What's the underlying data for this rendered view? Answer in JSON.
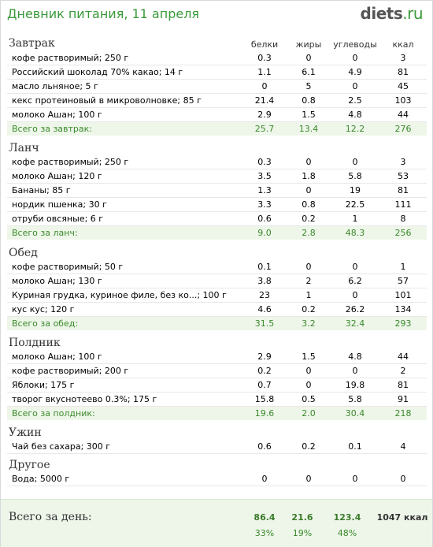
{
  "header": {
    "title": "Дневник питания, 11 апреля",
    "logo_main": "diets",
    "logo_suffix": ".ru"
  },
  "columns": {
    "protein": "белки",
    "fat": "жиры",
    "carbs": "углеводы",
    "kcal": "ккал"
  },
  "meals": {
    "breakfast": {
      "title": "Завтрак",
      "items": [
        {
          "name": "кофе растворимый; 250 г",
          "p": "0.3",
          "f": "0",
          "c": "0",
          "k": "3"
        },
        {
          "name": "Российский шоколад 70% какао; 14 г",
          "p": "1.1",
          "f": "6.1",
          "c": "4.9",
          "k": "81"
        },
        {
          "name": "масло льняное; 5 г",
          "p": "0",
          "f": "5",
          "c": "0",
          "k": "45"
        },
        {
          "name": "кекс протеиновый в микроволновке; 85 г",
          "p": "21.4",
          "f": "0.8",
          "c": "2.5",
          "k": "103"
        },
        {
          "name": "молоко Ашан; 100 г",
          "p": "2.9",
          "f": "1.5",
          "c": "4.8",
          "k": "44"
        }
      ],
      "total": {
        "name": "Всего за завтрак:",
        "p": "25.7",
        "f": "13.4",
        "c": "12.2",
        "k": "276"
      }
    },
    "lunch": {
      "title": "Ланч",
      "items": [
        {
          "name": "кофе растворимый; 250 г",
          "p": "0.3",
          "f": "0",
          "c": "0",
          "k": "3"
        },
        {
          "name": "молоко Ашан; 120 г",
          "p": "3.5",
          "f": "1.8",
          "c": "5.8",
          "k": "53"
        },
        {
          "name": "Бананы; 85 г",
          "p": "1.3",
          "f": "0",
          "c": "19",
          "k": "81"
        },
        {
          "name": "нордик пшенка; 30 г",
          "p": "3.3",
          "f": "0.8",
          "c": "22.5",
          "k": "111"
        },
        {
          "name": "отруби овсяные; 6 г",
          "p": "0.6",
          "f": "0.2",
          "c": "1",
          "k": "8"
        }
      ],
      "total": {
        "name": "Всего за ланч:",
        "p": "9.0",
        "f": "2.8",
        "c": "48.3",
        "k": "256"
      }
    },
    "dinner": {
      "title": "Обед",
      "items": [
        {
          "name": "кофе растворимый; 50 г",
          "p": "0.1",
          "f": "0",
          "c": "0",
          "k": "1"
        },
        {
          "name": "молоко Ашан; 130 г",
          "p": "3.8",
          "f": "2",
          "c": "6.2",
          "k": "57"
        },
        {
          "name": "Куриная грудка, куриное филе, без ко...; 100 г",
          "p": "23",
          "f": "1",
          "c": "0",
          "k": "101"
        },
        {
          "name": "кус кус; 120 г",
          "p": "4.6",
          "f": "0.2",
          "c": "26.2",
          "k": "134"
        }
      ],
      "total": {
        "name": "Всего за обед:",
        "p": "31.5",
        "f": "3.2",
        "c": "32.4",
        "k": "293"
      }
    },
    "snack": {
      "title": "Полдник",
      "items": [
        {
          "name": "молоко Ашан; 100 г",
          "p": "2.9",
          "f": "1.5",
          "c": "4.8",
          "k": "44"
        },
        {
          "name": "кофе растворимый; 200 г",
          "p": "0.2",
          "f": "0",
          "c": "0",
          "k": "2"
        },
        {
          "name": "Яблоки; 175 г",
          "p": "0.7",
          "f": "0",
          "c": "19.8",
          "k": "81"
        },
        {
          "name": "творог вкуснотеево 0.3%; 175 г",
          "p": "15.8",
          "f": "0.5",
          "c": "5.8",
          "k": "91"
        }
      ],
      "total": {
        "name": "Всего за полдник:",
        "p": "19.6",
        "f": "2.0",
        "c": "30.4",
        "k": "218"
      }
    },
    "supper": {
      "title": "Ужин",
      "items": [
        {
          "name": "Чай без сахара; 300 г",
          "p": "0.6",
          "f": "0.2",
          "c": "0.1",
          "k": "4"
        }
      ]
    },
    "other": {
      "title": "Другое",
      "items": [
        {
          "name": "Вода; 5000 г",
          "p": "0",
          "f": "0",
          "c": "0",
          "k": "0"
        }
      ]
    }
  },
  "day_total": {
    "label": "Всего за день:",
    "p": "86.4",
    "f": "21.6",
    "c": "123.4",
    "k": "1047 ккал",
    "p_pct": "33%",
    "f_pct": "19%",
    "c_pct": "48%"
  }
}
